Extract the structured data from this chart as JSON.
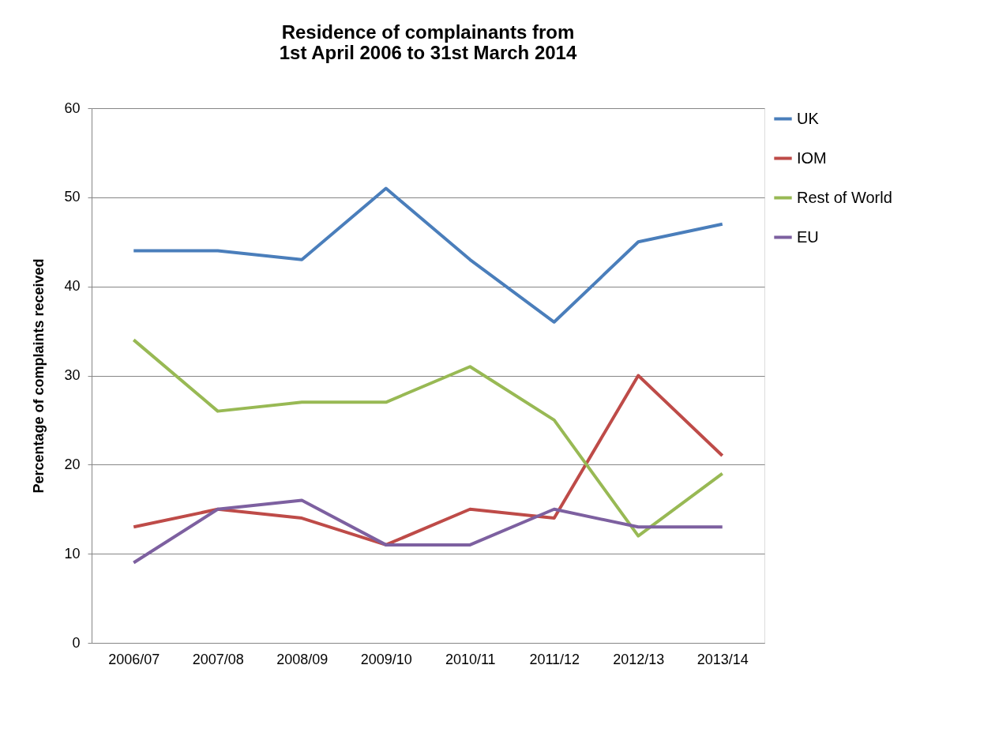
{
  "chart_data": {
    "type": "line",
    "title": "Residence of complainants from\n1st April 2006 to 31st March 2014",
    "ylabel": "Percentage of complaints received",
    "categories": [
      "2006/07",
      "2007/08",
      "2008/09",
      "2009/10",
      "2010/11",
      "2011/12",
      "2012/13",
      "2013/14"
    ],
    "series": [
      {
        "name": "UK",
        "color": "#4a7ebb",
        "values": [
          44,
          44,
          43,
          51,
          43,
          36,
          45,
          47
        ]
      },
      {
        "name": "IOM",
        "color": "#be4b48",
        "values": [
          13,
          15,
          14,
          11,
          15,
          14,
          30,
          21
        ]
      },
      {
        "name": "Rest of World",
        "color": "#98b954",
        "values": [
          34,
          26,
          27,
          27,
          31,
          25,
          12,
          19
        ]
      },
      {
        "name": "EU",
        "color": "#7d60a0",
        "values": [
          9,
          15,
          16,
          11,
          11,
          15,
          13,
          13
        ]
      }
    ],
    "ylim": [
      0,
      60
    ],
    "yticks": [
      0,
      10,
      20,
      30,
      40,
      50,
      60
    ],
    "grid": "y",
    "legend": "right",
    "marker": "none",
    "line_style": "solid"
  }
}
